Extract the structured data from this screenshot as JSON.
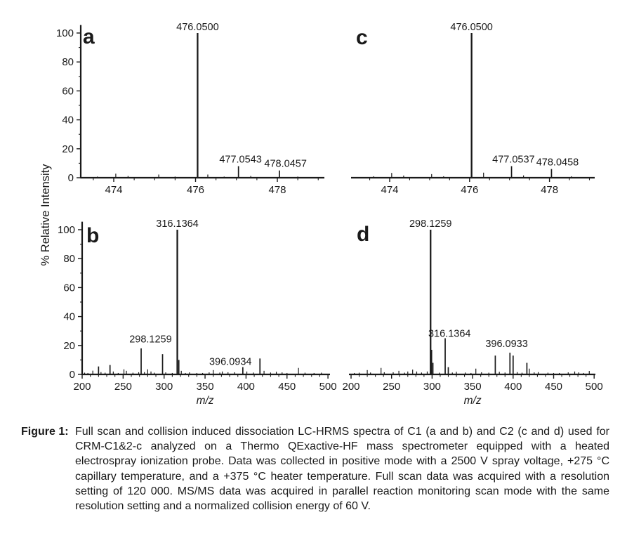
{
  "figure": {
    "caption_label": "Figure 1:",
    "caption_text": "Full scan and collision induced dissociation LC-HRMS spectra of C1 (a and b) and C2 (c and d) used for CRM-C1&2-c analyzed on a Thermo QExactive-HF mass spectrometer equipped with a heated electrospray ionization probe. Data was collected in positive mode with a 2500 V spray voltage, +275 °C capillary temperature, and a +375 °C heater temperature. Full scan data was acquired with a resolution setting of 120 000. MS/MS data was acquired in parallel reaction monitoring scan mode with the same resolution setting and a normalized collision energy of 60 V."
  },
  "colors": {
    "ink": "#1a1a1a",
    "background": "#ffffff"
  },
  "shared_y_axis_label": "% Relative Intensity",
  "chart_data": [
    {
      "id": "a",
      "type": "bar",
      "panel_label": "a",
      "title": "",
      "xlabel": "",
      "ylabel": "% Relative Intensity",
      "xlim": [
        473.2,
        479.1
      ],
      "ylim": [
        0,
        105
      ],
      "grid": false,
      "x_ticks": [
        474,
        476,
        478
      ],
      "x_minor_step": 0.5,
      "y_ticks": [
        0,
        20,
        40,
        60,
        80,
        100
      ],
      "y_minor_step": 10,
      "peaks": [
        [
          473.6,
          0.8
        ],
        [
          474.05,
          2.8
        ],
        [
          474.35,
          1.2
        ],
        [
          475.1,
          2.2
        ],
        [
          475.5,
          0.8
        ],
        [
          476.05,
          100
        ],
        [
          476.3,
          2.2
        ],
        [
          476.7,
          0.8
        ],
        [
          477.05,
          8
        ],
        [
          477.35,
          1.2
        ],
        [
          478.05,
          5
        ],
        [
          478.5,
          0.8
        ]
      ],
      "peak_labels": [
        {
          "text": "476.0500",
          "x": 476.05,
          "y": 102
        },
        {
          "text": "477.0543",
          "x": 477.1,
          "y": 10.5
        },
        {
          "text": "478.0457",
          "x": 478.2,
          "y": 7.5
        }
      ]
    },
    {
      "id": "c",
      "type": "bar",
      "panel_label": "c",
      "title": "",
      "xlabel": "",
      "ylabel": "",
      "xlim": [
        473.0,
        479.1
      ],
      "ylim": [
        0,
        105
      ],
      "grid": false,
      "x_ticks": [
        474,
        476,
        478
      ],
      "x_minor_step": 0.5,
      "y_ticks": [],
      "y_minor_step": 0,
      "peaks": [
        [
          473.6,
          1
        ],
        [
          474.05,
          3.3
        ],
        [
          474.35,
          1.5
        ],
        [
          475.05,
          2.5
        ],
        [
          475.35,
          1
        ],
        [
          476.05,
          100
        ],
        [
          476.35,
          3.5
        ],
        [
          477.05,
          8
        ],
        [
          477.35,
          1.6
        ],
        [
          478.05,
          6
        ],
        [
          478.55,
          1
        ]
      ],
      "peak_labels": [
        {
          "text": "476.0500",
          "x": 476.05,
          "y": 102
        },
        {
          "text": "477.0537",
          "x": 477.1,
          "y": 10.5
        },
        {
          "text": "478.0458",
          "x": 478.2,
          "y": 8.5
        }
      ]
    },
    {
      "id": "b",
      "type": "bar",
      "panel_label": "b",
      "title": "",
      "xlabel": "m/z",
      "ylabel": "% Relative Intensity",
      "xlim": [
        197,
        502.5
      ],
      "ylim": [
        0,
        105
      ],
      "grid": false,
      "x_ticks": [
        200,
        250,
        300,
        350,
        400,
        450,
        500
      ],
      "x_minor_step": 10,
      "y_ticks": [
        0,
        20,
        40,
        60,
        80,
        100
      ],
      "y_minor_step": 10,
      "peaks": [
        [
          203,
          1.2
        ],
        [
          207,
          1
        ],
        [
          213,
          2.6
        ],
        [
          220,
          5.5
        ],
        [
          223,
          1.6
        ],
        [
          228,
          1.2
        ],
        [
          234,
          6.5
        ],
        [
          238,
          2
        ],
        [
          244,
          1
        ],
        [
          251,
          3.5
        ],
        [
          254,
          2.5
        ],
        [
          262,
          1.2
        ],
        [
          269,
          1.5
        ],
        [
          272,
          18
        ],
        [
          276,
          1.6
        ],
        [
          280,
          3.5
        ],
        [
          284,
          2
        ],
        [
          288,
          1.2
        ],
        [
          298.13,
          14
        ],
        [
          302,
          1.4
        ],
        [
          310,
          1
        ],
        [
          316.14,
          100
        ],
        [
          318,
          10
        ],
        [
          321,
          2.5
        ],
        [
          326,
          1
        ],
        [
          331,
          1.4
        ],
        [
          340,
          1
        ],
        [
          347,
          1
        ],
        [
          355,
          1.4
        ],
        [
          360,
          3
        ],
        [
          368,
          1.3
        ],
        [
          371,
          2
        ],
        [
          378,
          1.5
        ],
        [
          386,
          1.5
        ],
        [
          396.09,
          5
        ],
        [
          401,
          2
        ],
        [
          409,
          1.3
        ],
        [
          417,
          11
        ],
        [
          422,
          2.5
        ],
        [
          430,
          1.3
        ],
        [
          437,
          1.8
        ],
        [
          444,
          1.4
        ],
        [
          450,
          1
        ],
        [
          464,
          4.5
        ],
        [
          472,
          1.2
        ],
        [
          483,
          1
        ],
        [
          492,
          1.2
        ]
      ],
      "peak_labels": [
        {
          "text": "316.1364",
          "x": 316.14,
          "y": 102
        },
        {
          "text": "298.1259",
          "x": 283.5,
          "y": 22
        },
        {
          "text": "396.0934",
          "x": 381,
          "y": 6.5
        }
      ]
    },
    {
      "id": "d",
      "type": "bar",
      "panel_label": "d",
      "title": "",
      "xlabel": "m/z",
      "ylabel": "",
      "xlim": [
        197.4,
        501.6
      ],
      "ylim": [
        0,
        105
      ],
      "grid": false,
      "x_ticks": [
        200,
        250,
        300,
        350,
        400,
        450,
        500
      ],
      "x_minor_step": 10,
      "y_ticks": [],
      "y_minor_step": 0,
      "peaks": [
        [
          204,
          1
        ],
        [
          210,
          1.2
        ],
        [
          220,
          3
        ],
        [
          224,
          1.3
        ],
        [
          237,
          4.5
        ],
        [
          241,
          1.5
        ],
        [
          252,
          1.5
        ],
        [
          259,
          2.5
        ],
        [
          266,
          1.2
        ],
        [
          270,
          2
        ],
        [
          276,
          3.3
        ],
        [
          281,
          2
        ],
        [
          287,
          1.3
        ],
        [
          294,
          2
        ],
        [
          298.13,
          100
        ],
        [
          299.4,
          17
        ],
        [
          301,
          8
        ],
        [
          309,
          1.2
        ],
        [
          316.14,
          25
        ],
        [
          320,
          5
        ],
        [
          325,
          1.3
        ],
        [
          330,
          1.8
        ],
        [
          341,
          1.3
        ],
        [
          348,
          1
        ],
        [
          354,
          4
        ],
        [
          361,
          1.5
        ],
        [
          370,
          1.2
        ],
        [
          378,
          13
        ],
        [
          383,
          1.8
        ],
        [
          390,
          1.3
        ],
        [
          396.09,
          15
        ],
        [
          400,
          13
        ],
        [
          405,
          1.6
        ],
        [
          411,
          1.2
        ],
        [
          417,
          8
        ],
        [
          420,
          4
        ],
        [
          426,
          1.4
        ],
        [
          431,
          1.6
        ],
        [
          443,
          1.2
        ],
        [
          450,
          1
        ],
        [
          457,
          1
        ],
        [
          468,
          1.4
        ],
        [
          476,
          2
        ],
        [
          481,
          1.4
        ],
        [
          487,
          1
        ],
        [
          494,
          2.4
        ]
      ],
      "peak_labels": [
        {
          "text": "298.1259",
          "x": 298.13,
          "y": 102
        },
        {
          "text": "316.1364",
          "x": 321.5,
          "y": 26
        },
        {
          "text": "396.0933",
          "x": 392,
          "y": 19
        }
      ]
    }
  ]
}
